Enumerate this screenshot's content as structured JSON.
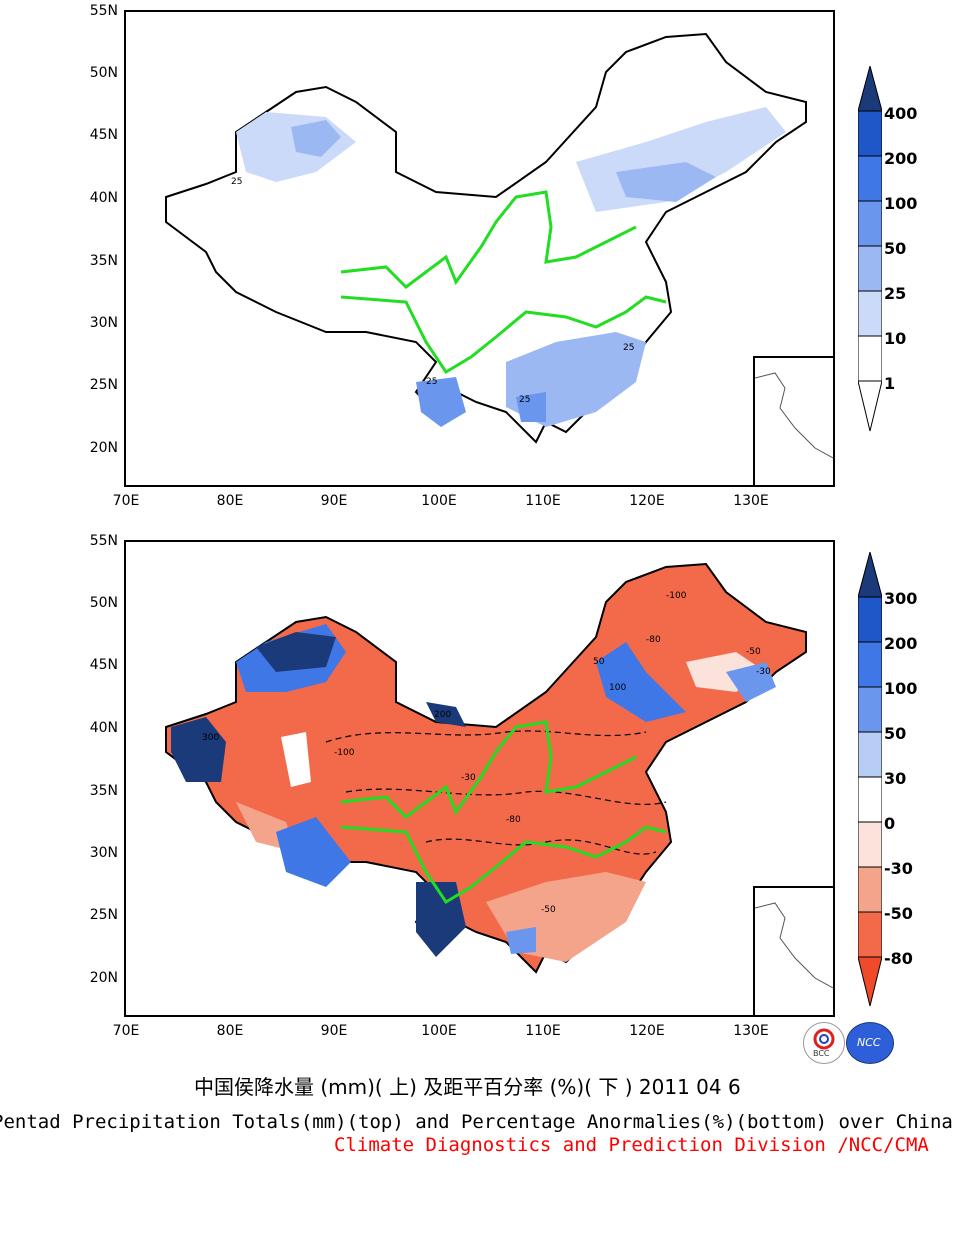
{
  "y_ticks": [
    "55N",
    "50N",
    "45N",
    "40N",
    "35N",
    "30N",
    "25N",
    "20N"
  ],
  "x_ticks": [
    "70E",
    "80E",
    "90E",
    "100E",
    "110E",
    "120E",
    "130E"
  ],
  "top_panel": {
    "colorbar_labels": [
      "400",
      "200",
      "100",
      "50",
      "25",
      "10",
      "1"
    ],
    "colorbar_colors": [
      "#1a3a7a",
      "#1f56c8",
      "#3f78e6",
      "#6a96ee",
      "#9cb8f3",
      "#cbdaf9",
      "#ffffff"
    ],
    "contour_labels": [
      "25",
      "25",
      "25",
      "25"
    ]
  },
  "bottom_panel": {
    "colorbar_labels": [
      "300",
      "200",
      "100",
      "50",
      "30",
      "0",
      "-30",
      "-50",
      "-80"
    ],
    "colorbar_colors": [
      "#1a3a7a",
      "#1f56c8",
      "#3f78e6",
      "#6a96ee",
      "#b8cdf6",
      "#ffffff",
      "#fbe3dc",
      "#f5a48c",
      "#f26a4a",
      "#f04a2a"
    ],
    "contour_labels": [
      "-100",
      "-80",
      "-50",
      "-30",
      "100",
      "300",
      "-100",
      "-80",
      "-50",
      "-30",
      "200",
      "50"
    ]
  },
  "colors": {
    "river": "#22dd22",
    "water": "#ffffff",
    "negative_anomaly": "#f26a4a",
    "positive_anomaly": "#2f5fd8"
  },
  "captions": {
    "title_cn": "中国侯降水量 (mm)( 上) 及距平百分率 (%)( 下 ) 2011 04 6",
    "title_en": "Pentad Precipitation Totals(mm)(top) and Percentage Anormalies(%)(bottom) over China",
    "org": "Climate Diagnostics and Prediction Division /NCC/CMA"
  },
  "logos": {
    "bcc": "BCC",
    "ncc": "NCC"
  }
}
